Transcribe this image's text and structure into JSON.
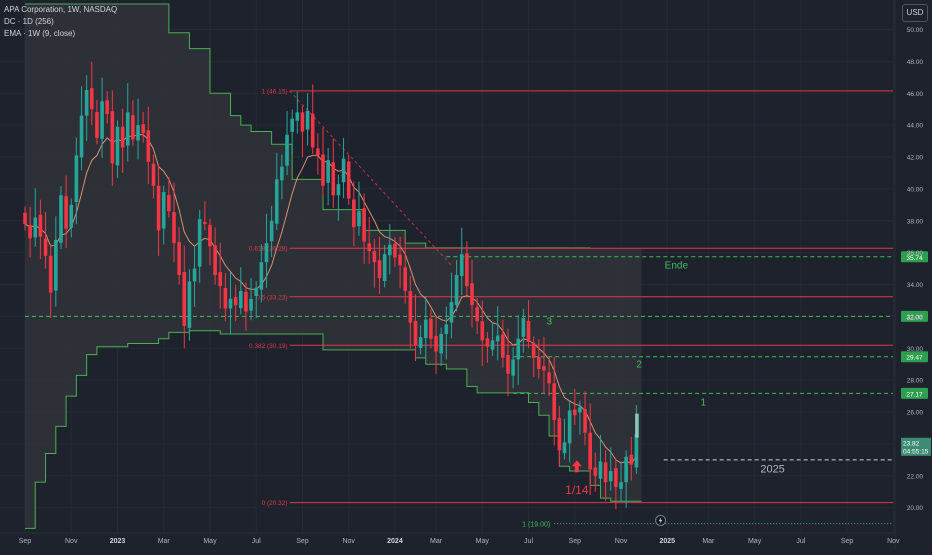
{
  "legend": {
    "symbol": "APA Corporation, 1W, NASDAQ",
    "indicator_dc": "DC · 1D (256)",
    "indicator_ema": "EMA · 1W (9, close)"
  },
  "currency_button": "USD",
  "colors": {
    "background": "#1e222d",
    "up": "#26a69a",
    "up_bright": "#22ab94",
    "down": "#f23645",
    "ema": "#f7a07a",
    "donchian_line": "#4caf50",
    "donchian_fill": "#2f3338",
    "fib_line": "#e0394a",
    "target_line": "#3fbf5a",
    "axis_text": "#b2b5be"
  },
  "chart_data": {
    "type": "candlestick",
    "y_axis": {
      "min": 18.6,
      "max": 51.6,
      "ticks": [
        "20.00",
        "22.00",
        "24.00",
        "26.00",
        "28.00",
        "30.00",
        "32.00",
        "34.00",
        "36.00",
        "38.00",
        "40.00",
        "42.00",
        "44.00",
        "46.00",
        "48.00",
        "50.00"
      ]
    },
    "x_axis": {
      "labels": [
        {
          "w": 0,
          "text": "Sep"
        },
        {
          "w": 9,
          "text": "Nov"
        },
        {
          "w": 18,
          "text": "2023"
        },
        {
          "w": 27,
          "text": "Mar"
        },
        {
          "w": 36,
          "text": "May"
        },
        {
          "w": 45,
          "text": "Jul"
        },
        {
          "w": 54,
          "text": "Sep"
        },
        {
          "w": 63,
          "text": "Nov"
        },
        {
          "w": 72,
          "text": "2024"
        },
        {
          "w": 80,
          "text": "Mar"
        },
        {
          "w": 89,
          "text": "May"
        },
        {
          "w": 98,
          "text": "Jul"
        },
        {
          "w": 107,
          "text": "Sep"
        },
        {
          "w": 116,
          "text": "Nov"
        },
        {
          "w": 125,
          "text": "2025"
        },
        {
          "w": 133,
          "text": "Mar"
        },
        {
          "w": 142,
          "text": "May"
        },
        {
          "w": 151,
          "text": "Jul"
        },
        {
          "w": 160,
          "text": "Sep"
        },
        {
          "w": 169,
          "text": "Nov"
        }
      ]
    },
    "candle_closes": [
      37.8,
      36.9,
      38.2,
      37.0,
      35.8,
      33.5,
      36.8,
      39.6,
      37.5,
      39.0,
      42.1,
      44.6,
      46.2,
      45.0,
      43.2,
      45.5,
      44.7,
      41.6,
      43.9,
      42.6,
      44.8,
      43.1,
      44.0,
      43.5,
      41.7,
      40.2,
      37.4,
      39.8,
      38.6,
      36.6,
      34.6,
      31.4,
      34.2,
      35.0,
      38.1,
      37.8,
      36.4,
      34.6,
      33.9,
      32.5,
      33.1,
      32.7,
      33.6,
      32.3,
      33.1,
      33.8,
      35.4,
      36.6,
      38.0,
      40.6,
      41.4,
      43.4,
      44.4,
      44.8,
      43.6,
      44.9,
      42.6,
      42.1,
      40.2,
      41.8,
      39.6,
      40.3,
      41.9,
      39.4,
      37.6,
      38.6,
      36.7,
      36.1,
      35.4,
      34.4,
      35.9,
      36.5,
      35.7,
      35.2,
      33.6,
      31.6,
      30.2,
      30.7,
      31.8,
      30.6,
      29.8,
      30.9,
      31.5,
      32.9,
      34.6,
      35.9,
      33.9,
      32.7,
      31.7,
      30.5,
      30.1,
      30.5,
      30.8,
      29.4,
      28.4,
      29.3,
      30.6,
      31.9,
      30.4,
      29.4,
      28.7,
      28.6,
      27.8,
      25.5,
      23.6,
      24.1,
      26.1,
      25.8,
      26.3,
      24.7,
      22.4,
      22.0,
      22.9,
      21.6,
      22.3,
      21.3,
      21.6,
      23.2,
      22.7,
      24.6
    ],
    "ema_9": [
      37.8,
      37.6,
      37.7,
      37.5,
      37.2,
      36.4,
      36.5,
      37.1,
      37.2,
      37.6,
      38.5,
      39.7,
      41.0,
      41.8,
      42.1,
      42.8,
      43.2,
      42.9,
      43.1,
      43.0,
      43.3,
      43.3,
      43.4,
      43.4,
      43.1,
      42.5,
      41.4,
      41.1,
      40.6,
      39.8,
      38.7,
      37.3,
      36.7,
      36.4,
      36.7,
      36.9,
      36.8,
      36.3,
      35.8,
      35.2,
      34.8,
      34.4,
      34.2,
      33.8,
      33.7,
      33.7,
      34.0,
      34.5,
      35.2,
      36.3,
      37.3,
      38.5,
      39.7,
      40.7,
      41.3,
      42.0,
      42.1,
      42.1,
      41.7,
      41.7,
      41.3,
      41.1,
      41.2,
      40.8,
      40.1,
      39.8,
      39.2,
      38.6,
      38.0,
      37.3,
      37.0,
      36.9,
      36.7,
      36.4,
      35.9,
      35.0,
      34.0,
      33.4,
      33.1,
      32.6,
      32.0,
      31.8,
      31.7,
      32.0,
      32.5,
      33.2,
      33.3,
      33.2,
      32.9,
      32.4,
      31.9,
      31.6,
      31.5,
      31.1,
      30.5,
      30.2,
      30.3,
      30.6,
      30.5,
      30.3,
      30.0,
      29.7,
      29.3,
      28.6,
      27.6,
      26.9,
      26.7,
      26.5,
      26.4,
      26.1,
      25.4,
      24.7,
      24.3,
      23.8,
      23.5,
      23.0,
      22.8,
      22.9,
      22.8,
      23.2
    ],
    "donchian_upper": [
      [
        0,
        51.6
      ],
      [
        24,
        51.6
      ],
      [
        28,
        49.8
      ],
      [
        32,
        48.8
      ],
      [
        36,
        46.0
      ],
      [
        40,
        44.6
      ],
      [
        42,
        44.0
      ],
      [
        44,
        43.6
      ],
      [
        48,
        42.8
      ],
      [
        52,
        40.6
      ],
      [
        58,
        38.7
      ],
      [
        66,
        37.4
      ],
      [
        74,
        36.6
      ],
      [
        78,
        36.3
      ],
      [
        84,
        36.3
      ],
      [
        104,
        36.3
      ],
      [
        110,
        36.3
      ]
    ],
    "donchian_lower": [
      [
        0,
        18.7
      ],
      [
        2,
        21.6
      ],
      [
        4,
        23.4
      ],
      [
        6,
        25.1
      ],
      [
        8,
        27.0
      ],
      [
        10,
        28.3
      ],
      [
        12,
        29.6
      ],
      [
        14,
        30.1
      ],
      [
        20,
        30.3
      ],
      [
        24,
        30.3
      ],
      [
        26,
        30.6
      ],
      [
        28,
        31.0
      ],
      [
        32,
        31.1
      ],
      [
        36,
        31.1
      ],
      [
        38,
        30.9
      ],
      [
        40,
        30.9
      ],
      [
        44,
        30.9
      ],
      [
        48,
        30.9
      ],
      [
        52,
        30.9
      ],
      [
        56,
        30.9
      ],
      [
        58,
        29.9
      ],
      [
        64,
        29.9
      ],
      [
        72,
        29.9
      ],
      [
        76,
        29.4
      ],
      [
        78,
        29.0
      ],
      [
        82,
        28.7
      ],
      [
        86,
        27.6
      ],
      [
        88,
        27.2
      ],
      [
        92,
        27.2
      ],
      [
        98,
        26.6
      ],
      [
        100,
        25.8
      ],
      [
        102,
        24.5
      ],
      [
        104,
        22.6
      ],
      [
        106,
        22.3
      ],
      [
        108,
        22.3
      ],
      [
        110,
        21.4
      ],
      [
        112,
        20.6
      ],
      [
        114,
        20.4
      ],
      [
        120,
        20.4
      ]
    ],
    "fib_levels": [
      {
        "label": "1 (46.15)",
        "value": 46.15
      },
      {
        "label": "0.618 (36.28)",
        "value": 36.28
      },
      {
        "label": "0.5 (33.23)",
        "value": 33.23
      },
      {
        "label": "0.382 (30.19)",
        "value": 30.19
      },
      {
        "label": "0 (20.32)",
        "value": 20.32
      },
      {
        "label": "1 (19.00)",
        "value": 19.0
      }
    ],
    "target_levels": [
      {
        "name": "Ende",
        "value": 35.74,
        "tag": "35.74"
      },
      {
        "name": "3",
        "value": 32.0,
        "tag": "32.00"
      },
      {
        "name": "2",
        "value": 29.47,
        "tag": "29.47"
      },
      {
        "name": "1",
        "value": 27.17,
        "tag": "27.17"
      }
    ],
    "current_price": {
      "value": "23.82",
      "countdown": "04:55:15",
      "numeric": 23.82
    },
    "annotations": [
      {
        "text": "Ende"
      },
      {
        "text": "3"
      },
      {
        "text": "2"
      },
      {
        "text": "1"
      },
      {
        "text": "2025"
      },
      {
        "text": "1/14"
      }
    ]
  }
}
